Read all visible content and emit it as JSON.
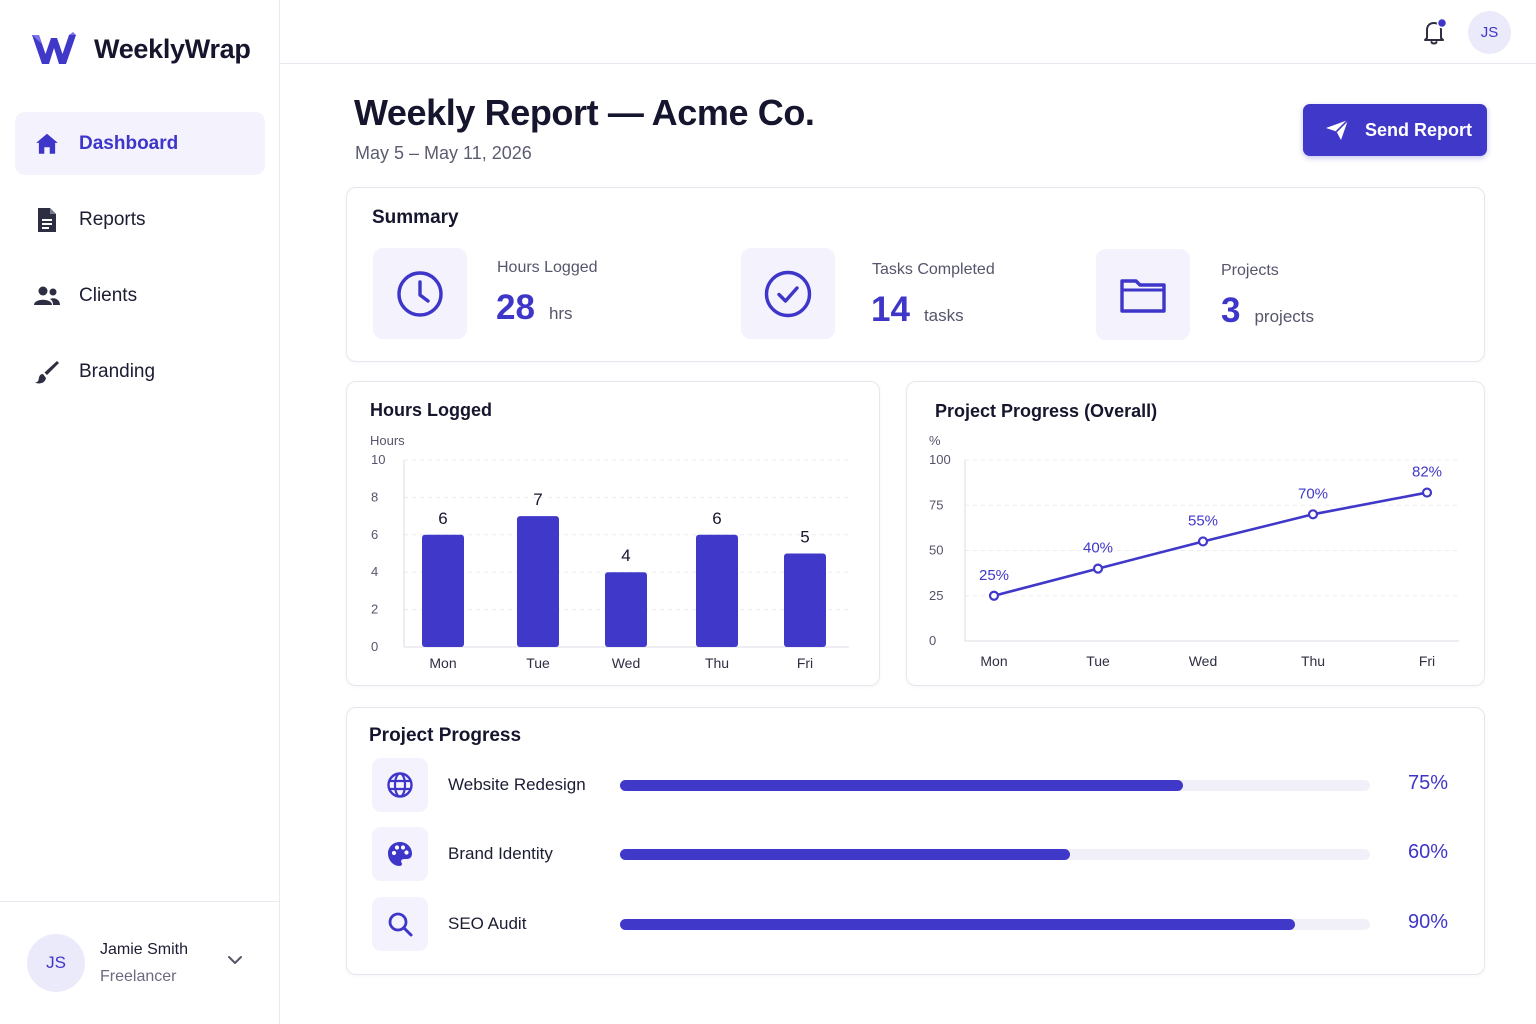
{
  "app": {
    "name": "WeeklyWrap"
  },
  "sidebar": {
    "items": [
      {
        "label": "Dashboard",
        "icon": "home-icon",
        "active": true
      },
      {
        "label": "Reports",
        "icon": "document-icon",
        "active": false
      },
      {
        "label": "Clients",
        "icon": "users-icon",
        "active": false
      },
      {
        "label": "Branding",
        "icon": "brush-icon",
        "active": false
      }
    ]
  },
  "user": {
    "initials": "JS",
    "name": "Jamie Smith",
    "role": "Freelancer"
  },
  "header": {
    "title": "Weekly Report — Acme Co.",
    "date_range": "May 5 – May 11, 2026",
    "send_label": "Send Report",
    "avatar_initials": "JS"
  },
  "summary": {
    "title": "Summary",
    "stats": [
      {
        "label": "Hours Logged",
        "value": "28",
        "unit": "hrs",
        "icon": "clock-icon"
      },
      {
        "label": "Tasks Completed",
        "value": "14",
        "unit": "tasks",
        "icon": "check-circle-icon"
      },
      {
        "label": "Projects",
        "value": "3",
        "unit": "projects",
        "icon": "folder-icon"
      }
    ]
  },
  "chart_data": [
    {
      "type": "bar",
      "title": "Hours Logged",
      "ylabel": "Hours",
      "categories": [
        "Mon",
        "Tue",
        "Wed",
        "Thu",
        "Fri"
      ],
      "values": [
        6,
        7,
        4,
        6,
        5
      ],
      "ylim": [
        0,
        10
      ],
      "yticks": [
        0,
        2,
        4,
        6,
        8,
        10
      ],
      "grid": true,
      "color": "#4038c9"
    },
    {
      "type": "line",
      "title": "Project Progress (Overall)",
      "ylabel": "%",
      "categories": [
        "Mon",
        "Tue",
        "Wed",
        "Thu",
        "Fri"
      ],
      "values": [
        25,
        40,
        55,
        70,
        82
      ],
      "labels": [
        "25%",
        "40%",
        "55%",
        "70%",
        "82%"
      ],
      "ylim": [
        0,
        100
      ],
      "yticks": [
        0,
        25,
        50,
        75,
        100
      ],
      "grid": true,
      "color": "#4038c9"
    }
  ],
  "projects": {
    "title": "Project Progress",
    "items": [
      {
        "name": "Website Redesign",
        "progress": 75,
        "label": "75%",
        "icon": "globe-icon"
      },
      {
        "name": "Brand Identity",
        "progress": 60,
        "label": "60%",
        "icon": "palette-icon"
      },
      {
        "name": "SEO Audit",
        "progress": 90,
        "label": "90%",
        "icon": "search-icon"
      }
    ]
  },
  "colors": {
    "accent": "#4038c9",
    "accent_soft": "#f3f2fd",
    "border": "#e6e6ee"
  }
}
